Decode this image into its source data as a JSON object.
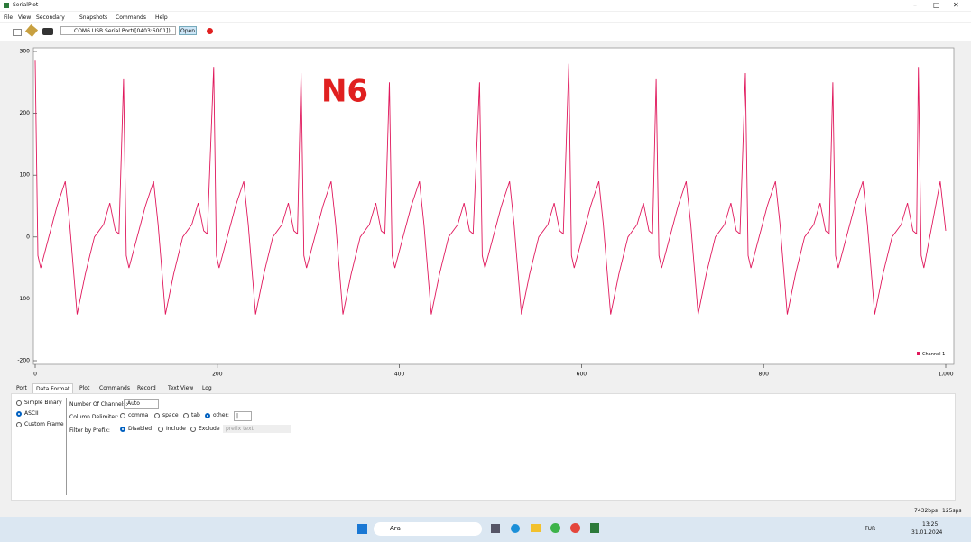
{
  "window": {
    "title": "SerialPlot"
  },
  "menu": [
    "File",
    "View",
    "Secondary",
    "Snapshots",
    "Commands",
    "Help"
  ],
  "toolbar": {
    "port": "COM6 USB Serial Port([0403:6001])",
    "open": "Open"
  },
  "chart_data": {
    "type": "line",
    "annotation": "N6",
    "x": [
      0,
      3,
      6,
      15,
      24,
      33,
      38,
      46,
      55,
      65,
      75,
      82,
      88,
      92,
      97,
      100,
      103,
      112,
      121,
      130,
      135,
      143,
      152,
      162,
      172,
      179,
      185,
      189,
      196,
      199,
      202,
      211,
      220,
      229,
      234,
      242,
      251,
      261,
      271,
      278,
      284,
      288,
      292,
      295,
      298,
      307,
      316,
      325,
      330,
      338,
      347,
      357,
      367,
      374,
      380,
      384,
      389,
      392,
      395,
      404,
      413,
      422,
      427,
      435,
      444,
      454,
      464,
      471,
      477,
      481,
      488,
      491,
      494,
      503,
      512,
      521,
      526,
      534,
      543,
      553,
      563,
      570,
      576,
      580,
      586,
      589,
      592,
      601,
      610,
      619,
      624,
      632,
      641,
      651,
      661,
      668,
      674,
      678,
      682,
      685,
      688,
      697,
      706,
      715,
      720,
      728,
      737,
      747,
      757,
      764,
      770,
      774,
      780,
      783,
      786,
      795,
      804,
      813,
      818,
      826,
      835,
      845,
      855,
      862,
      868,
      872,
      876,
      879,
      882,
      891,
      900,
      909,
      914,
      922,
      931,
      941,
      951,
      958,
      964,
      968,
      970,
      973,
      976,
      985,
      994,
      1000
    ],
    "series": [
      {
        "name": "Channel 1",
        "color": "#e0185c",
        "values": [
          285,
          -30,
          -50,
          0,
          50,
          90,
          20,
          -125,
          -60,
          0,
          20,
          55,
          10,
          5,
          255,
          -30,
          -50,
          0,
          50,
          90,
          20,
          -125,
          -60,
          0,
          20,
          55,
          10,
          5,
          275,
          -30,
          -50,
          0,
          50,
          90,
          20,
          -125,
          -60,
          0,
          20,
          55,
          10,
          5,
          265,
          -30,
          -50,
          0,
          50,
          90,
          20,
          -125,
          -60,
          0,
          20,
          55,
          10,
          5,
          250,
          -30,
          -50,
          0,
          50,
          90,
          20,
          -125,
          -60,
          0,
          20,
          55,
          10,
          5,
          250,
          -30,
          -50,
          0,
          50,
          90,
          20,
          -125,
          -60,
          0,
          20,
          55,
          10,
          5,
          280,
          -30,
          -50,
          0,
          50,
          90,
          20,
          -125,
          -60,
          0,
          20,
          55,
          10,
          5,
          255,
          -30,
          -50,
          0,
          50,
          90,
          20,
          -125,
          -60,
          0,
          20,
          55,
          10,
          5,
          265,
          -30,
          -50,
          0,
          50,
          90,
          20,
          -125,
          -60,
          0,
          20,
          55,
          10,
          5,
          250,
          -30,
          -50,
          0,
          50,
          90,
          20,
          -125,
          -60,
          0,
          20,
          55,
          10,
          5,
          275,
          -30,
          -50,
          20,
          90,
          10
        ]
      }
    ],
    "xlim": [
      0,
      1000
    ],
    "ylim": [
      -200,
      300
    ],
    "xticks": [
      0,
      200,
      400,
      600,
      800,
      {
        "value": 1000,
        "label": "1,000"
      }
    ],
    "yticks": [
      -200,
      -100,
      0,
      100,
      200,
      300
    ],
    "legend": "bottom-right"
  },
  "tabs": [
    "Port",
    "Data Format",
    "Plot",
    "Commands",
    "Record",
    "Text View",
    "Log"
  ],
  "format_options": [
    "Simple Binary",
    "ASCII",
    "Custom Frame"
  ],
  "settings": {
    "channels_label": "Number Of Channels:",
    "channels_value": "Auto",
    "delimiter_label": "Column Delimiter:",
    "delimiters": [
      "comma",
      "space",
      "tab",
      "other:"
    ],
    "delimiter_value": "|",
    "filter_label": "Filter by Prefix:",
    "filters": [
      "Disabled",
      "Include",
      "Exclude"
    ],
    "prefix_placeholder": "prefix text"
  },
  "status": {
    "bps": "7432bps",
    "sps": "125sps"
  },
  "taskbar": {
    "search": "Ara",
    "lang": "TUR",
    "time": "13:25",
    "date": "31.01.2024"
  }
}
